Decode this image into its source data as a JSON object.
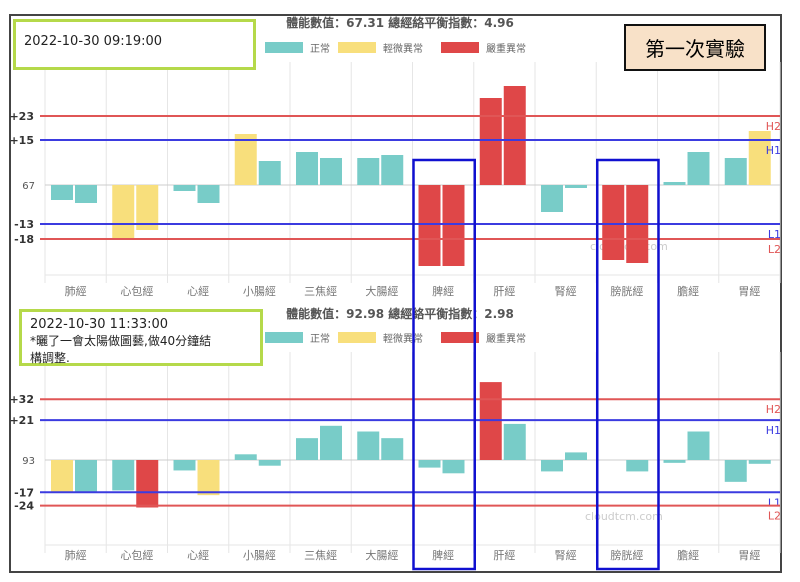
{
  "badge": "第一次實驗",
  "watermark": "cloudtcm.com",
  "colors": {
    "normal": "#78ccc8",
    "mild": "#f8df7c",
    "severe": "#df4748",
    "upper_red": "#e05656",
    "upper_blue": "#3b3be0",
    "highlight": "#1010d0",
    "green_box": "#b5d94a"
  },
  "legend": [
    {
      "key": "normal",
      "label": "正常"
    },
    {
      "key": "mild",
      "label": "輕微異常"
    },
    {
      "key": "severe",
      "label": "嚴重異常"
    }
  ],
  "highlighted_categories": [
    "脾經",
    "膀胱經"
  ],
  "chart_data": [
    {
      "type": "bar",
      "title": "體能數值：67.31 總經絡平衡指數：4.96",
      "note_lines": [
        "2022-10-30 09:19:00"
      ],
      "categories": [
        "肺經",
        "心包經",
        "心經",
        "小腸經",
        "三焦經",
        "大腸經",
        "脾經",
        "肝經",
        "腎經",
        "膀胱經",
        "膽經",
        "胃經"
      ],
      "center_label": "67",
      "reference_lines": [
        {
          "value": 23,
          "label": "+23",
          "tag": "H2",
          "color": "red"
        },
        {
          "value": 15,
          "label": "+15",
          "tag": "H1",
          "color": "blue"
        },
        {
          "value": -13,
          "label": "-13",
          "tag": "L1",
          "color": "blue"
        },
        {
          "value": -18,
          "label": "-18",
          "tag": "L2",
          "color": "red"
        }
      ],
      "bars": [
        [
          {
            "v": -5,
            "s": "normal"
          },
          {
            "v": -6,
            "s": "normal"
          }
        ],
        [
          {
            "v": -18,
            "s": "mild"
          },
          {
            "v": -15,
            "s": "mild"
          }
        ],
        [
          {
            "v": -2,
            "s": "normal"
          },
          {
            "v": -6,
            "s": "normal"
          }
        ],
        [
          {
            "v": 17,
            "s": "mild"
          },
          {
            "v": 8,
            "s": "normal"
          }
        ],
        [
          {
            "v": 11,
            "s": "normal"
          },
          {
            "v": 9,
            "s": "normal"
          }
        ],
        [
          {
            "v": 9,
            "s": "normal"
          },
          {
            "v": 10,
            "s": "normal"
          }
        ],
        [
          {
            "v": -27,
            "s": "severe"
          },
          {
            "v": -27,
            "s": "severe"
          }
        ],
        [
          {
            "v": 29,
            "s": "severe"
          },
          {
            "v": 33,
            "s": "severe"
          }
        ],
        [
          {
            "v": -9,
            "s": "normal"
          },
          {
            "v": -1,
            "s": "normal"
          }
        ],
        [
          {
            "v": -25,
            "s": "severe"
          },
          {
            "v": -26,
            "s": "severe"
          }
        ],
        [
          {
            "v": 1,
            "s": "normal"
          },
          {
            "v": 11,
            "s": "normal"
          }
        ],
        [
          {
            "v": 9,
            "s": "normal"
          },
          {
            "v": 18,
            "s": "mild"
          }
        ]
      ]
    },
    {
      "type": "bar",
      "title": "體能數值：92.98 總經絡平衡指數：2.98",
      "note_lines": [
        "2022-10-30 11:33:00",
        "*曬了一會太陽做圖藝,做40分鐘結",
        "構調整."
      ],
      "categories": [
        "肺經",
        "心包經",
        "心經",
        "小腸經",
        "三焦經",
        "大腸經",
        "脾經",
        "肝經",
        "腎經",
        "膀胱經",
        "膽經",
        "胃經"
      ],
      "center_label": "93",
      "reference_lines": [
        {
          "value": 32,
          "label": "+32",
          "tag": "H2",
          "color": "red"
        },
        {
          "value": 21,
          "label": "+21",
          "tag": "H1",
          "color": "blue"
        },
        {
          "value": -17,
          "label": "-17",
          "tag": "L1",
          "color": "blue"
        },
        {
          "value": -24,
          "label": "-24",
          "tag": "L2",
          "color": "red"
        }
      ],
      "bars": [
        [
          {
            "v": -17,
            "s": "mild"
          },
          {
            "v": -17,
            "s": "normal"
          }
        ],
        [
          {
            "v": -16,
            "s": "normal"
          },
          {
            "v": -25,
            "s": "severe"
          }
        ],
        [
          {
            "v": -5.5,
            "s": "normal"
          },
          {
            "v": -18.5,
            "s": "mild"
          }
        ],
        [
          {
            "v": 3,
            "s": "normal"
          },
          {
            "v": -3,
            "s": "normal"
          }
        ],
        [
          {
            "v": 11.5,
            "s": "normal"
          },
          {
            "v": 18,
            "s": "normal"
          }
        ],
        [
          {
            "v": 15,
            "s": "normal"
          },
          {
            "v": 11.5,
            "s": "normal"
          }
        ],
        [
          {
            "v": -4,
            "s": "normal"
          },
          {
            "v": -7,
            "s": "normal"
          }
        ],
        [
          {
            "v": 41,
            "s": "severe"
          },
          {
            "v": 19,
            "s": "normal"
          }
        ],
        [
          {
            "v": -6,
            "s": "normal"
          },
          {
            "v": 4,
            "s": "normal"
          }
        ],
        [
          {
            "v": 0,
            "s": "normal"
          },
          {
            "v": -6,
            "s": "normal"
          }
        ],
        [
          {
            "v": -1.5,
            "s": "normal"
          },
          {
            "v": 15,
            "s": "normal"
          }
        ],
        [
          {
            "v": -11.5,
            "s": "normal"
          },
          {
            "v": -2,
            "s": "normal"
          }
        ]
      ]
    }
  ]
}
